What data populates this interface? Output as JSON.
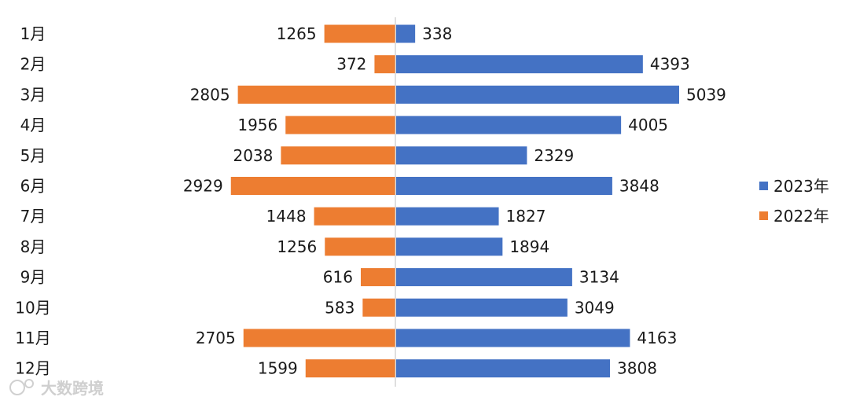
{
  "chart_data": {
    "type": "bar",
    "orientation": "horizontal-butterfly",
    "categories": [
      "1月",
      "2月",
      "3月",
      "4月",
      "5月",
      "6月",
      "7月",
      "8月",
      "9月",
      "10月",
      "11月",
      "12月"
    ],
    "series": [
      {
        "name": "2023年",
        "color": "#4472C4",
        "side": "right",
        "values": [
          338,
          4393,
          5039,
          4005,
          2329,
          3848,
          1827,
          1894,
          3134,
          3049,
          4163,
          3808
        ]
      },
      {
        "name": "2022年",
        "color": "#ED7D31",
        "side": "left",
        "values": [
          1265,
          372,
          2805,
          1956,
          2038,
          2929,
          1448,
          1256,
          616,
          583,
          2705,
          1599
        ]
      }
    ],
    "legend_position": "right",
    "grid": false
  },
  "watermark": {
    "text": "大数跨境"
  }
}
